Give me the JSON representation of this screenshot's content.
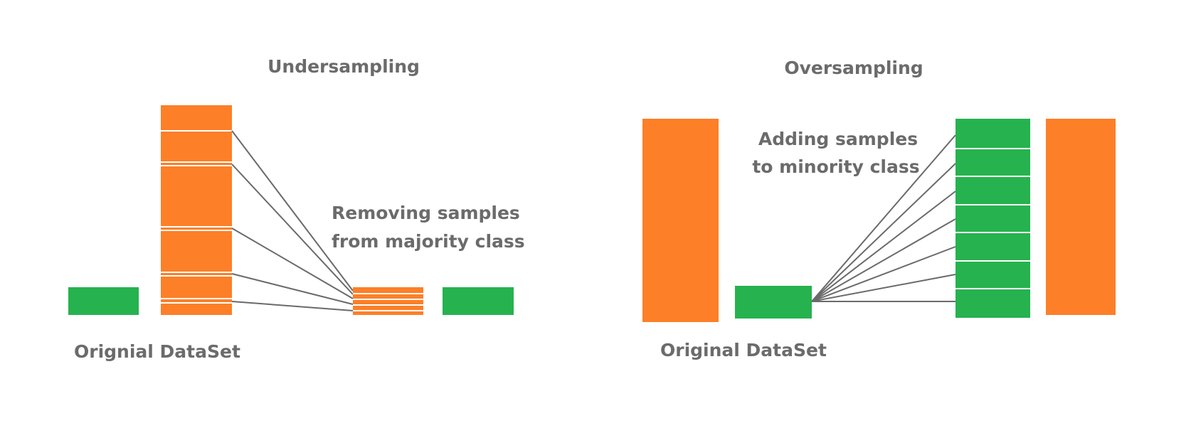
{
  "colors": {
    "majority": "#fd7f28",
    "minority": "#26b24e",
    "text": "#6b6b6b",
    "connector": "#6a6a6a"
  },
  "undersampling": {
    "title": "Undersampling",
    "note_line1": "Removing samples",
    "note_line2": "from majority class",
    "caption": "Orignial DataSet"
  },
  "oversampling": {
    "title": "Oversampling",
    "note_line1": "Adding samples",
    "note_line2": "to minority class",
    "caption": "Original DataSet"
  }
}
